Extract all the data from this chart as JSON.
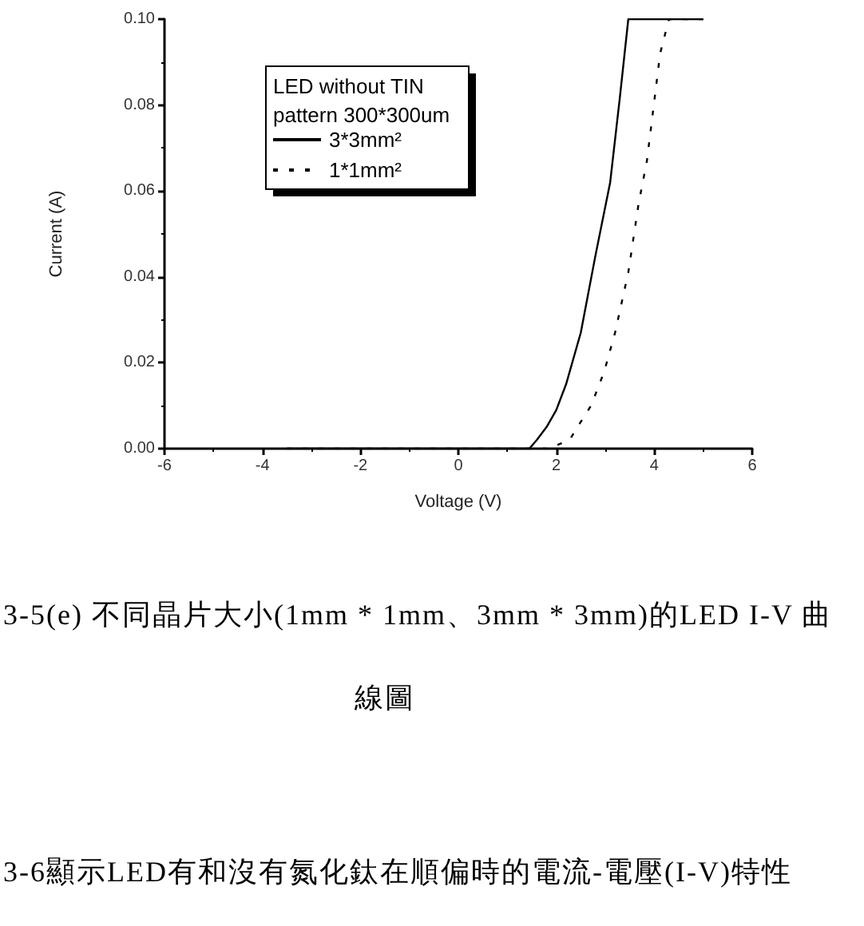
{
  "chart_data": {
    "type": "line",
    "xlabel": "Voltage (V)",
    "ylabel": "Current (A)",
    "legend_title": "LED without TIN pattern 300*300um",
    "series": [
      {
        "name": "3*3mm²",
        "color": "#000000",
        "line_style": "solid",
        "x": [
          -3.5,
          1.45,
          1.6,
          1.8,
          2.0,
          2.2,
          2.5,
          2.8,
          3.1,
          3.3,
          3.47,
          5.0
        ],
        "values": [
          0,
          0,
          0.002,
          0.005,
          0.009,
          0.015,
          0.027,
          0.045,
          0.062,
          0.082,
          0.1,
          0.1
        ]
      },
      {
        "name": "1*1mm²",
        "color": "#000000",
        "line_style": "dotted",
        "x": [
          -3.5,
          1.9,
          2.05,
          2.27,
          2.43,
          2.71,
          2.98,
          3.2,
          3.47,
          3.68,
          3.85,
          4.12,
          4.3,
          5.0
        ],
        "values": [
          0,
          0,
          0.001,
          0.002,
          0.005,
          0.01,
          0.018,
          0.027,
          0.041,
          0.057,
          0.067,
          0.092,
          0.1,
          0.1
        ]
      }
    ],
    "xlim": [
      -6,
      6
    ],
    "xticks": [
      -6,
      -4,
      -2,
      0,
      2,
      4,
      6
    ],
    "ylim": [
      0,
      0.1
    ],
    "yticks": [
      {
        "value": 0,
        "label": "0.00"
      },
      {
        "value": 0.02,
        "label": "0.02"
      },
      {
        "value": 0.04,
        "label": "0.04"
      },
      {
        "value": 0.06,
        "label": "0.06"
      },
      {
        "value": 0.08,
        "label": "0.08"
      },
      {
        "value": 0.1,
        "label": "0.10"
      }
    ],
    "grid": false,
    "legend": "top left",
    "marker": "none",
    "annotations": [
      "3-5(e) 不同晶片大小(1mm * 1mm、3mm * 3mm)的LED I-V 曲",
      "線圖",
      "3-6顯示LED有和沒有氮化鈦在順偏時的電流-電壓(I-V)特性"
    ]
  }
}
